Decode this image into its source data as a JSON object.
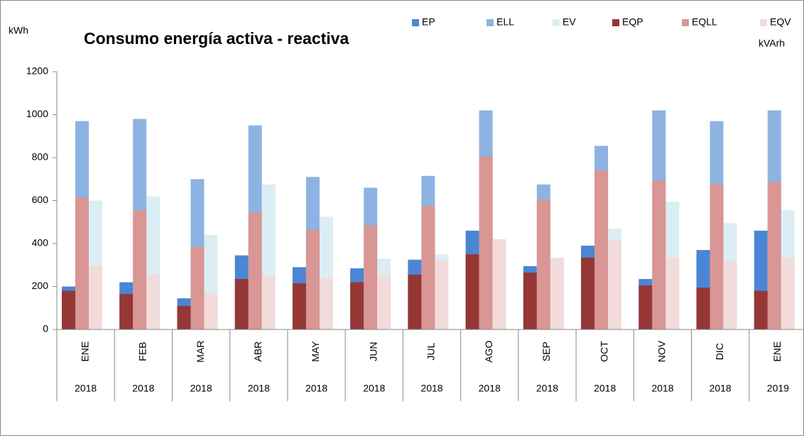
{
  "chart_data": {
    "type": "bar",
    "title": "Consumo energía activa - reactiva",
    "y_label": "kWh",
    "y2_label": "kVArh",
    "categories": [
      "ENE",
      "FEB",
      "MAR",
      "ABR",
      "MAY",
      "JUN",
      "JUL",
      "AGO",
      "SEP",
      "OCT",
      "NOV",
      "DIC",
      "ENE"
    ],
    "category_groups": [
      "2018",
      "2018",
      "2018",
      "2018",
      "2018",
      "2018",
      "2018",
      "2018",
      "2018",
      "2018",
      "2018",
      "2018",
      "2019"
    ],
    "ylim": [
      0,
      1200
    ],
    "yticks": [
      0,
      200,
      400,
      600,
      800,
      1000,
      1200
    ],
    "y2lim": [
      0,
      1200
    ],
    "grid": false,
    "series": [
      {
        "name": "EP",
        "color": "#4a86d4",
        "column": 0,
        "values": [
          200,
          220,
          145,
          345,
          290,
          285,
          325,
          460,
          295,
          390,
          235,
          370,
          460
        ]
      },
      {
        "name": "ELL",
        "color": "#8db3e2",
        "column": 1,
        "values": [
          970,
          980,
          700,
          950,
          710,
          660,
          715,
          1020,
          675,
          855,
          1020,
          970,
          1020
        ]
      },
      {
        "name": "EV",
        "color": "#dbeef4",
        "column": 2,
        "values": [
          600,
          620,
          440,
          675,
          525,
          330,
          350,
          420,
          335,
          470,
          595,
          495,
          555
        ]
      },
      {
        "name": "EQP",
        "color": "#953735",
        "column": 0,
        "axis": "y2",
        "values": [
          180,
          165,
          110,
          235,
          215,
          220,
          255,
          350,
          265,
          335,
          205,
          195,
          180
        ]
      },
      {
        "name": "EQLL",
        "color": "#d99694",
        "column": 1,
        "axis": "y2",
        "values": [
          615,
          555,
          385,
          545,
          465,
          485,
          575,
          805,
          605,
          740,
          695,
          675,
          685
        ]
      },
      {
        "name": "EQV",
        "color": "#f2dcdb",
        "column": 2,
        "axis": "y2",
        "values": [
          295,
          255,
          170,
          250,
          240,
          255,
          325,
          420,
          330,
          415,
          335,
          320,
          335
        ]
      }
    ]
  }
}
